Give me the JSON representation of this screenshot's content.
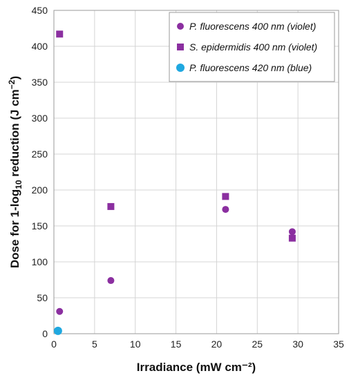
{
  "chart_data": {
    "type": "scatter",
    "xlabel": "Irradiance (mW cm⁻²)",
    "ylabel_parts": [
      "Dose for 1-log",
      "10",
      " reduction (J cm",
      "−2",
      ")"
    ],
    "xlim": [
      0,
      35
    ],
    "ylim": [
      0,
      450
    ],
    "x_ticks": [
      0,
      5,
      10,
      15,
      20,
      25,
      30,
      35
    ],
    "y_ticks": [
      0,
      50,
      100,
      150,
      200,
      250,
      300,
      350,
      400,
      450
    ],
    "grid": true,
    "legend_position": "top-right",
    "series": [
      {
        "name": "P. fluorescens 400 nm (violet)",
        "marker": "circle",
        "color": "#8B2FA0",
        "points": [
          [
            0.7,
            31
          ],
          [
            7.0,
            74
          ],
          [
            21.1,
            173
          ],
          [
            29.3,
            142
          ]
        ]
      },
      {
        "name": "S. epidermidis 400 nm (violet)",
        "marker": "square",
        "color": "#8B2FA0",
        "points": [
          [
            0.7,
            417
          ],
          [
            7.0,
            177
          ],
          [
            21.1,
            191
          ],
          [
            29.3,
            133
          ]
        ]
      },
      {
        "name": "P. fluorescens 420 nm (blue)",
        "marker": "circle",
        "color": "#1FA8E0",
        "points": [
          [
            0.5,
            4
          ]
        ]
      }
    ]
  }
}
